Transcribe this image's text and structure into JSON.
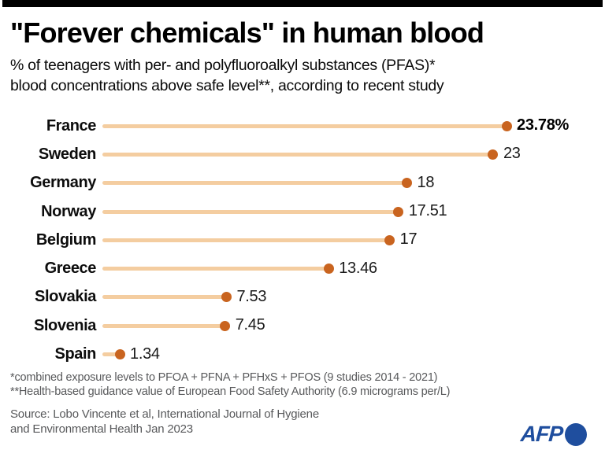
{
  "header": {
    "title": "\"Forever chemicals\" in human blood",
    "subtitle_line1": "% of teenagers with per- and polyfluoroalkyl substances (PFAS)*",
    "subtitle_line2": "blood concentrations above safe level**, according to recent study"
  },
  "chart_data": {
    "type": "bar",
    "variant": "horizontal-lollipop",
    "title": "% of teenagers with PFAS blood concentrations above safe level",
    "categories": [
      "France",
      "Sweden",
      "Germany",
      "Norway",
      "Belgium",
      "Greece",
      "Slovakia",
      "Slovenia",
      "Spain"
    ],
    "values": [
      23.78,
      23,
      18,
      17.51,
      17,
      13.46,
      7.53,
      7.45,
      1.34
    ],
    "value_labels": [
      "23.78%",
      "23",
      "18",
      "17.51",
      "17",
      "13.46",
      "7.53",
      "7.45",
      "1.34"
    ],
    "unit": "%",
    "xlim": [
      0,
      25
    ],
    "grid": false,
    "legend": "none",
    "line_color": "#f4cda0",
    "dot_color": "#c9641f"
  },
  "footnotes": {
    "line1": "*combined exposure levels to PFOA + PFNA + PFHxS + PFOS (9 studies 2014 - 2021)",
    "line2": "**Health-based guidance value of European Food Safety Authority (6.9 micrograms per/L)"
  },
  "source": {
    "line1": "Source: Lobo Vincente et al, International Journal of Hygiene",
    "line2": "and Environmental Health Jan 2023"
  },
  "logo": {
    "text": "AFP",
    "color": "#1f4e9e"
  }
}
